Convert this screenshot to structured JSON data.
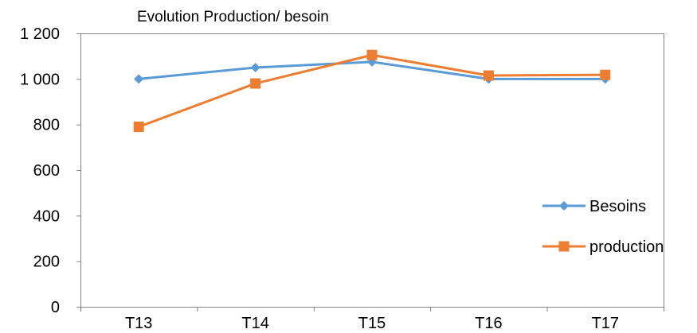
{
  "chart_data": {
    "type": "line",
    "title": "Evolution Production/ besoin",
    "categories": [
      "T13",
      "T14",
      "T15",
      "T16",
      "T17"
    ],
    "ylim": [
      0,
      1200
    ],
    "yticks": [
      0,
      200,
      400,
      600,
      800,
      1000,
      1200
    ],
    "ytick_labels": [
      "0",
      "200",
      "400",
      "600",
      "800",
      "1 000",
      "1 200"
    ],
    "grid": false,
    "legend_position": "right",
    "series": [
      {
        "name": "Besoins",
        "values": [
          1000,
          1050,
          1075,
          1000,
          1000
        ],
        "color": "#5b9bd5",
        "marker": "diamond"
      },
      {
        "name": "production",
        "values": [
          790,
          980,
          1105,
          1015,
          1018
        ],
        "color": "#ed7d31",
        "marker": "square"
      }
    ]
  }
}
